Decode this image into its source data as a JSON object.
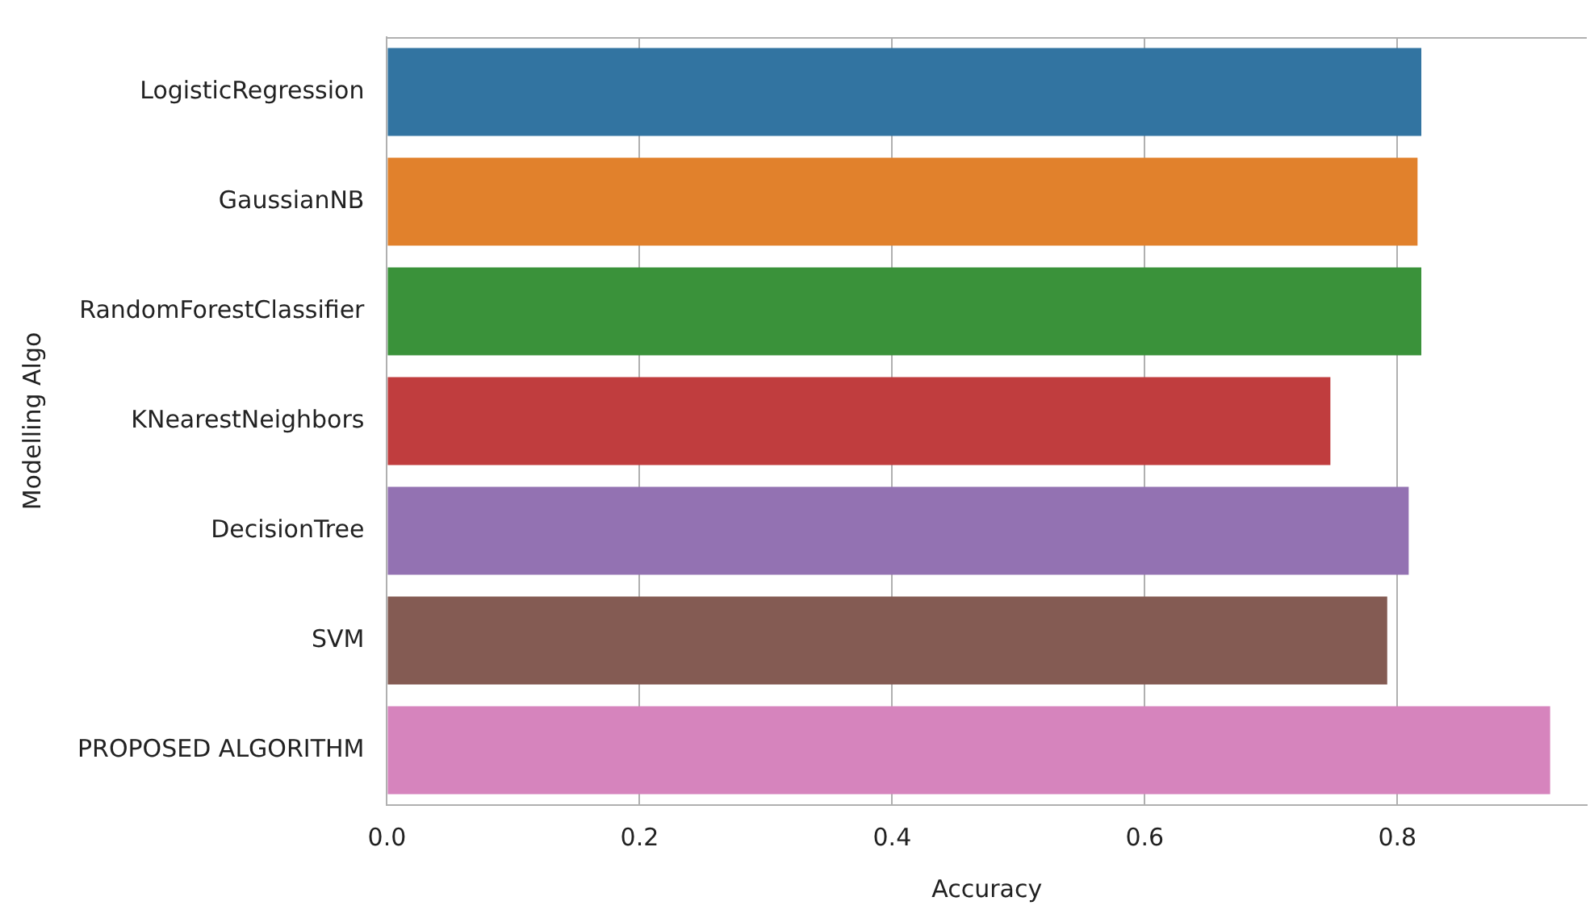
{
  "chart_data": {
    "type": "bar",
    "orientation": "horizontal",
    "xlabel": "Accuracy",
    "ylabel": "Modelling Algo",
    "categories": [
      "LogisticRegression",
      "GaussianNB",
      "RandomForestClassifier",
      "KNearestNeighbors",
      "DecisionTree",
      "SVM",
      "PROPOSED ALGORITHM"
    ],
    "values": [
      0.819,
      0.816,
      0.819,
      0.747,
      0.809,
      0.792,
      0.921
    ],
    "colors": [
      "#3274a1",
      "#e1812c",
      "#3a923a",
      "#c03d3e",
      "#9372b2",
      "#845b53",
      "#d684bd"
    ],
    "xlim": [
      0,
      0.95
    ],
    "xticks": [
      {
        "value": 0,
        "label": "0.0"
      },
      {
        "value": 0.2,
        "label": "0.2"
      },
      {
        "value": 0.4,
        "label": "0.4"
      },
      {
        "value": 0.6,
        "label": "0.6"
      },
      {
        "value": 0.8,
        "label": "0.8"
      }
    ],
    "grid": "x"
  }
}
